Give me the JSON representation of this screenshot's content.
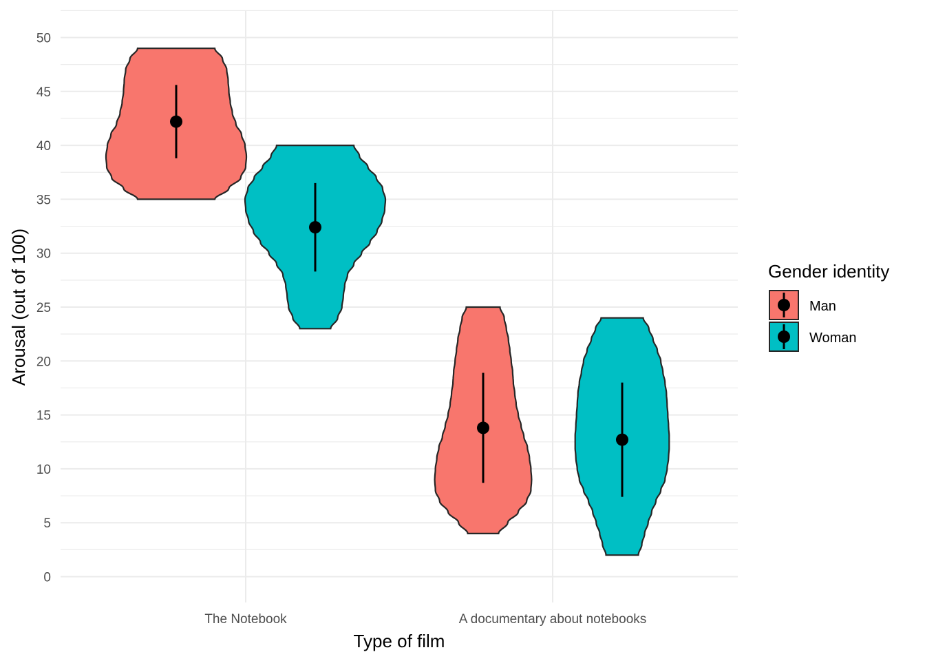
{
  "chart_data": {
    "type": "violin",
    "title": "",
    "xlabel": "Type of film",
    "ylabel": "Arousal (out of 100)",
    "ylim": [
      -2.4,
      52.4
    ],
    "y_ticks": [
      0,
      5,
      10,
      15,
      20,
      25,
      30,
      35,
      40,
      45,
      50
    ],
    "categories": [
      "The Notebook",
      "A documentary about notebooks"
    ],
    "grid": true,
    "legend": {
      "title": "Gender identity",
      "placement": "right",
      "entries": [
        "Man",
        "Woman"
      ]
    },
    "series": [
      {
        "name": "Man",
        "color": "#F8766D",
        "groups": [
          {
            "category": "The Notebook",
            "mean": 42.2,
            "ci_low": 38.8,
            "ci_high": 45.6,
            "min": 35,
            "max": 49,
            "density": [
              [
                35,
                0.55
              ],
              [
                36,
                0.75
              ],
              [
                37,
                0.92
              ],
              [
                38,
                0.99
              ],
              [
                39,
                1.0
              ],
              [
                40,
                0.98
              ],
              [
                41,
                0.93
              ],
              [
                42,
                0.85
              ],
              [
                43,
                0.8
              ],
              [
                44,
                0.77
              ],
              [
                45,
                0.75
              ],
              [
                46,
                0.74
              ],
              [
                47,
                0.72
              ],
              [
                48,
                0.66
              ],
              [
                49,
                0.55
              ]
            ]
          },
          {
            "category": "A documentary about notebooks",
            "mean": 13.8,
            "ci_low": 8.7,
            "ci_high": 18.9,
            "min": 4,
            "max": 25,
            "density": [
              [
                4,
                0.22
              ],
              [
                5,
                0.35
              ],
              [
                6,
                0.5
              ],
              [
                7,
                0.62
              ],
              [
                8,
                0.68
              ],
              [
                9,
                0.69
              ],
              [
                10,
                0.68
              ],
              [
                11,
                0.66
              ],
              [
                12,
                0.63
              ],
              [
                13,
                0.58
              ],
              [
                14,
                0.54
              ],
              [
                15,
                0.5
              ],
              [
                16,
                0.47
              ],
              [
                17,
                0.45
              ],
              [
                18,
                0.43
              ],
              [
                19,
                0.42
              ],
              [
                20,
                0.4
              ],
              [
                21,
                0.38
              ],
              [
                22,
                0.36
              ],
              [
                23,
                0.33
              ],
              [
                24,
                0.3
              ],
              [
                25,
                0.24
              ]
            ]
          }
        ]
      },
      {
        "name": "Woman",
        "color": "#00BFC4",
        "groups": [
          {
            "category": "The Notebook",
            "mean": 32.4,
            "ci_low": 28.3,
            "ci_high": 36.5,
            "min": 23,
            "max": 40,
            "density": [
              [
                23,
                0.22
              ],
              [
                24,
                0.32
              ],
              [
                25,
                0.38
              ],
              [
                26,
                0.4
              ],
              [
                27,
                0.42
              ],
              [
                28,
                0.46
              ],
              [
                29,
                0.55
              ],
              [
                30,
                0.66
              ],
              [
                31,
                0.78
              ],
              [
                32,
                0.88
              ],
              [
                33,
                0.95
              ],
              [
                34,
                0.99
              ],
              [
                35,
                1.0
              ],
              [
                36,
                0.96
              ],
              [
                37,
                0.87
              ],
              [
                38,
                0.75
              ],
              [
                39,
                0.63
              ],
              [
                40,
                0.55
              ]
            ]
          },
          {
            "category": "A documentary about notebooks",
            "mean": 12.7,
            "ci_low": 7.4,
            "ci_high": 18.0,
            "min": 2,
            "max": 24,
            "density": [
              [
                2,
                0.23
              ],
              [
                3,
                0.28
              ],
              [
                4,
                0.32
              ],
              [
                5,
                0.37
              ],
              [
                6,
                0.42
              ],
              [
                7,
                0.48
              ],
              [
                8,
                0.55
              ],
              [
                9,
                0.61
              ],
              [
                10,
                0.64
              ],
              [
                11,
                0.66
              ],
              [
                12,
                0.67
              ],
              [
                13,
                0.67
              ],
              [
                14,
                0.66
              ],
              [
                15,
                0.65
              ],
              [
                16,
                0.64
              ],
              [
                17,
                0.63
              ],
              [
                18,
                0.61
              ],
              [
                19,
                0.58
              ],
              [
                20,
                0.55
              ],
              [
                21,
                0.5
              ],
              [
                22,
                0.44
              ],
              [
                23,
                0.38
              ],
              [
                24,
                0.3
              ]
            ]
          }
        ]
      }
    ]
  }
}
